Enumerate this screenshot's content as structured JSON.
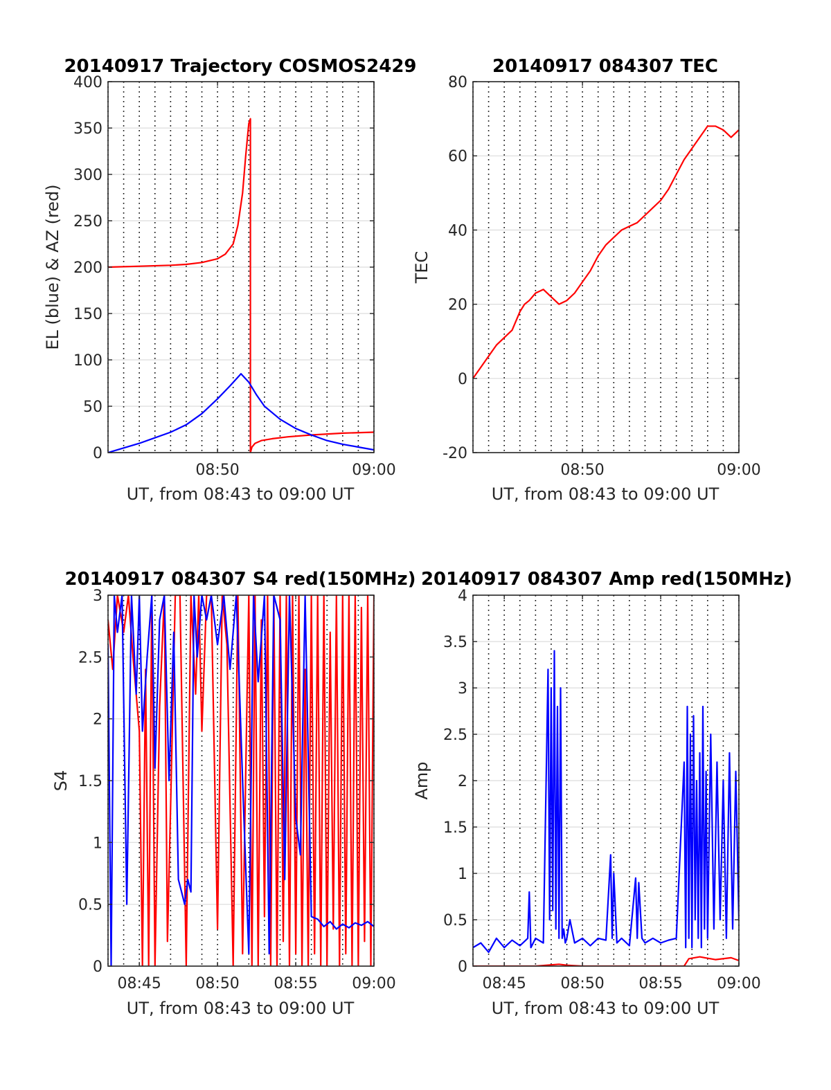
{
  "chart_data": [
    {
      "id": "trajectory",
      "type": "line",
      "title": "20140917 Trajectory COSMOS2429",
      "xlabel": "UT, from 08:43 to 09:00 UT",
      "ylabel": "EL (blue) & AZ (red)",
      "xlim": [
        0,
        17
      ],
      "ylim": [
        0,
        400
      ],
      "xticks": [
        {
          "v": 7,
          "label": "08:50"
        },
        {
          "v": 17,
          "label": "09:00"
        }
      ],
      "yticks": [
        {
          "v": 0,
          "label": "0"
        },
        {
          "v": 50,
          "label": "50"
        },
        {
          "v": 100,
          "label": "100"
        },
        {
          "v": 150,
          "label": "150"
        },
        {
          "v": 200,
          "label": "200"
        },
        {
          "v": 250,
          "label": "250"
        },
        {
          "v": 300,
          "label": "300"
        },
        {
          "v": 350,
          "label": "350"
        },
        {
          "v": 400,
          "label": "400"
        }
      ],
      "series": [
        {
          "color": "#ff0000",
          "x": [
            0,
            2,
            4,
            5,
            6,
            7,
            7.5,
            8,
            8.3,
            8.6,
            8.8,
            9.0,
            9.1,
            9.1,
            9.2,
            9.4,
            9.8,
            10.5,
            11.5,
            13,
            15,
            17
          ],
          "y": [
            200,
            201,
            202,
            203,
            205,
            209,
            214,
            225,
            245,
            280,
            320,
            355,
            360,
            0,
            6,
            10,
            13,
            15,
            17,
            19,
            21,
            22
          ]
        },
        {
          "color": "#0000ff",
          "x": [
            0,
            2,
            4,
            5,
            6,
            7,
            7.8,
            8.5,
            9.0,
            9.5,
            10,
            11,
            12,
            13,
            14,
            15,
            16,
            17
          ],
          "y": [
            0,
            10,
            22,
            30,
            42,
            58,
            72,
            85,
            76,
            62,
            50,
            36,
            26,
            19,
            13,
            9,
            6,
            3
          ]
        }
      ]
    },
    {
      "id": "tec",
      "type": "line",
      "title": "20140917 084307 TEC",
      "xlabel": "UT, from 08:43 to 09:00 UT",
      "ylabel": "TEC",
      "xlim": [
        0,
        17
      ],
      "ylim": [
        -20,
        80
      ],
      "xticks": [
        {
          "v": 7,
          "label": "08:50"
        },
        {
          "v": 17,
          "label": "09:00"
        }
      ],
      "yticks": [
        {
          "v": -20,
          "label": "-20"
        },
        {
          "v": 0,
          "label": "0"
        },
        {
          "v": 20,
          "label": "20"
        },
        {
          "v": 40,
          "label": "40"
        },
        {
          "v": 60,
          "label": "60"
        },
        {
          "v": 80,
          "label": "80"
        }
      ],
      "series": [
        {
          "color": "#ff0000",
          "x": [
            0,
            0.5,
            1,
            1.5,
            2,
            2.5,
            3,
            3.3,
            3.6,
            4,
            4.5,
            5,
            5.5,
            6,
            6.5,
            7,
            7.5,
            8,
            8.5,
            9,
            9.5,
            10,
            10.5,
            11,
            11.5,
            12,
            12.5,
            13,
            13.5,
            14,
            14.5,
            15,
            15.5,
            16,
            16.5,
            17
          ],
          "y": [
            0,
            3,
            6,
            9,
            11,
            13,
            18,
            20,
            21,
            23,
            24,
            22,
            20,
            21,
            23,
            26,
            29,
            33,
            36,
            38,
            40,
            41,
            42,
            44,
            46,
            48,
            51,
            55,
            59,
            62,
            65,
            68,
            68,
            67,
            65,
            67
          ]
        }
      ]
    },
    {
      "id": "s4",
      "type": "line",
      "title": "20140917 084307 S4 red(150MHz)",
      "xlabel": "UT, from 08:43 to 09:00 UT",
      "ylabel": "S4",
      "xlim": [
        0,
        17
      ],
      "ylim": [
        0,
        3
      ],
      "xticks": [
        {
          "v": 2,
          "label": "08:45"
        },
        {
          "v": 7,
          "label": "08:50"
        },
        {
          "v": 12,
          "label": "08:55"
        },
        {
          "v": 17,
          "label": "09:00"
        }
      ],
      "yticks": [
        {
          "v": 0,
          "label": "0"
        },
        {
          "v": 0.5,
          "label": "0.5"
        },
        {
          "v": 1,
          "label": "1"
        },
        {
          "v": 1.5,
          "label": "1.5"
        },
        {
          "v": 2,
          "label": "2"
        },
        {
          "v": 2.5,
          "label": "2.5"
        },
        {
          "v": 3,
          "label": "3"
        }
      ],
      "series": [
        {
          "color": "#ff0000",
          "x": [
            0,
            0.3,
            0.6,
            1.0,
            1.3,
            1.6,
            2.0,
            2.2,
            2.4,
            2.6,
            2.8,
            3.0,
            3.3,
            3.6,
            3.8,
            4.0,
            4.3,
            4.6,
            5.0,
            5.3,
            5.6,
            5.8,
            6.0,
            6.3,
            6.6,
            7.0,
            7.3,
            7.6,
            8.0,
            8.3,
            8.6,
            9.0,
            9.2,
            9.4,
            9.6,
            9.8,
            10.0,
            10.2,
            10.4,
            10.6,
            10.8,
            11.0,
            11.2,
            11.4,
            11.6,
            11.8,
            12.0,
            12.2,
            12.4,
            12.6,
            12.8,
            13.0,
            13.2,
            13.4,
            13.6,
            13.8,
            14.0,
            14.2,
            14.4,
            14.6,
            14.8,
            15.0,
            15.2,
            15.4,
            15.6,
            15.8,
            16.0,
            16.2,
            16.4,
            16.6,
            16.8,
            17.0
          ],
          "y": [
            2.8,
            2.4,
            3.0,
            2.7,
            3.0,
            2.5,
            1.9,
            0,
            2.4,
            0,
            3.0,
            0,
            2.1,
            3.0,
            0.2,
            1.3,
            3.0,
            3.0,
            0,
            3.0,
            2.2,
            3.0,
            1.9,
            3.0,
            3.0,
            0.3,
            3.0,
            2.6,
            0,
            3.0,
            0.1,
            3.0,
            0,
            3.0,
            0,
            2.8,
            0.4,
            3.0,
            0,
            3.0,
            0,
            3.0,
            0.2,
            3.0,
            0,
            3.0,
            0.1,
            3.0,
            0,
            2.4,
            0,
            3.0,
            0.1,
            3.0,
            0,
            3.0,
            0,
            2.7,
            0.3,
            3.0,
            0,
            3.0,
            0.1,
            3.0,
            0,
            3.0,
            0,
            2.9,
            0.2,
            3.0,
            0,
            3.0
          ]
        },
        {
          "color": "#0000ff",
          "x": [
            0,
            0.2,
            0.4,
            0.6,
            0.9,
            1.2,
            1.5,
            1.8,
            2.0,
            2.2,
            2.5,
            2.8,
            3.0,
            3.3,
            3.6,
            3.9,
            4.2,
            4.5,
            4.7,
            4.9,
            5.1,
            5.3,
            5.5,
            5.7,
            6.0,
            6.3,
            6.6,
            7.0,
            7.4,
            7.8,
            8.2,
            8.6,
            9.0,
            9.3,
            9.6,
            10.0,
            10.3,
            10.6,
            11.0,
            11.3,
            11.6,
            12.0,
            12.3,
            12.6,
            13.0,
            13.4,
            13.8,
            14.2,
            14.6,
            15.0,
            15.4,
            15.8,
            16.2,
            16.6,
            17.0
          ],
          "y": [
            2.6,
            0,
            3.0,
            2.7,
            3.0,
            0.5,
            3.0,
            2.2,
            3.0,
            1.9,
            2.5,
            3.0,
            1.6,
            2.8,
            3.0,
            1.5,
            2.7,
            0.7,
            0.6,
            0.5,
            0.7,
            0.6,
            3.0,
            2.5,
            3.0,
            2.8,
            3.0,
            2.6,
            3.0,
            2.4,
            3.0,
            1.5,
            0.1,
            3.0,
            2.3,
            3.0,
            0.1,
            3.0,
            2.8,
            0.7,
            3.0,
            1.2,
            0.9,
            3.0,
            0.4,
            0.38,
            0.32,
            0.36,
            0.3,
            0.34,
            0.31,
            0.35,
            0.33,
            0.36,
            0.32
          ]
        }
      ]
    },
    {
      "id": "amp",
      "type": "line",
      "title": "20140917 084307 Amp red(150MHz)",
      "xlabel": "UT, from 08:43 to 09:00 UT",
      "ylabel": "Amp",
      "xlim": [
        0,
        17
      ],
      "ylim": [
        0,
        4
      ],
      "xticks": [
        {
          "v": 2,
          "label": "08:45"
        },
        {
          "v": 7,
          "label": "08:50"
        },
        {
          "v": 12,
          "label": "08:55"
        },
        {
          "v": 17,
          "label": "09:00"
        }
      ],
      "yticks": [
        {
          "v": 0,
          "label": "0"
        },
        {
          "v": 0.5,
          "label": "0.5"
        },
        {
          "v": 1,
          "label": "1"
        },
        {
          "v": 1.5,
          "label": "1.5"
        },
        {
          "v": 2,
          "label": "2"
        },
        {
          "v": 2.5,
          "label": "2.5"
        },
        {
          "v": 3,
          "label": "3"
        },
        {
          "v": 3.5,
          "label": "3.5"
        },
        {
          "v": 4,
          "label": "4"
        }
      ],
      "series": [
        {
          "color": "#ff0000",
          "x": [
            0,
            4,
            5.5,
            6,
            7,
            13.5,
            13.8,
            14.5,
            15.5,
            16.5,
            17
          ],
          "y": [
            0,
            0,
            0.02,
            0.01,
            0,
            0,
            0.08,
            0.1,
            0.07,
            0.09,
            0.06
          ]
        },
        {
          "color": "#0000ff",
          "x": [
            0,
            0.5,
            1,
            1.5,
            2,
            2.5,
            3,
            3.5,
            3.6,
            3.7,
            4,
            4.5,
            4.8,
            4.9,
            5.0,
            5.1,
            5.2,
            5.3,
            5.4,
            5.5,
            5.6,
            5.7,
            5.8,
            5.9,
            6.0,
            6.2,
            6.5,
            7,
            7.5,
            8,
            8.5,
            8.8,
            8.9,
            9.0,
            9.2,
            9.5,
            10,
            10.4,
            10.5,
            10.6,
            10.8,
            11,
            11.5,
            12,
            12.5,
            13,
            13.5,
            13.6,
            13.7,
            13.8,
            13.9,
            14.0,
            14.1,
            14.2,
            14.3,
            14.4,
            14.5,
            14.6,
            14.7,
            14.8,
            14.9,
            15.0,
            15.2,
            15.4,
            15.6,
            15.8,
            16.0,
            16.2,
            16.4,
            16.6,
            16.8,
            17.0
          ],
          "y": [
            0.2,
            0.25,
            0.15,
            0.3,
            0.2,
            0.28,
            0.22,
            0.3,
            0.8,
            0.2,
            0.3,
            0.25,
            3.2,
            0.5,
            3.0,
            0.6,
            3.4,
            0.4,
            2.8,
            0.3,
            3.0,
            0.3,
            0.4,
            0.25,
            0.3,
            0.5,
            0.25,
            0.3,
            0.22,
            0.3,
            0.28,
            1.2,
            0.3,
            1.0,
            0.25,
            0.3,
            0.22,
            0.95,
            0.3,
            0.9,
            0.3,
            0.25,
            0.3,
            0.25,
            0.28,
            0.3,
            2.2,
            0.2,
            2.8,
            0.3,
            2.5,
            0.2,
            2.7,
            0.5,
            2.0,
            0.3,
            2.3,
            0.2,
            2.8,
            0.4,
            2.1,
            0.3,
            2.5,
            0.4,
            2.2,
            0.5,
            2.0,
            0.3,
            2.3,
            0.4,
            2.1,
            0.5
          ]
        }
      ]
    }
  ]
}
